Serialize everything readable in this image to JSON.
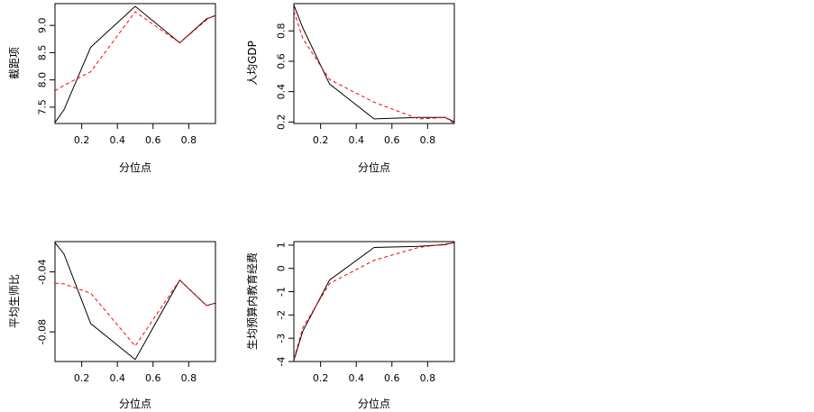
{
  "chart_data": [
    {
      "type": "line",
      "xlabel": "分位点",
      "ylabel": "截距项",
      "xlim": [
        0.05,
        0.95
      ],
      "ylim": [
        7.2,
        9.4
      ],
      "xticks": [
        0.2,
        0.4,
        0.6,
        0.8
      ],
      "xtick_labels": [
        "0.2",
        "0.4",
        "0.6",
        "0.8"
      ],
      "yticks": [
        7.5,
        8.0,
        8.5,
        9.0
      ],
      "ytick_labels": [
        "7.5",
        "8.0",
        "8.5",
        "9.0"
      ],
      "grid": false,
      "x": [
        0.05,
        0.1,
        0.25,
        0.5,
        0.75,
        0.9,
        0.95
      ],
      "series": [
        {
          "values": [
            7.22,
            7.45,
            8.6,
            9.35,
            8.68,
            9.12,
            9.18
          ],
          "color": "#000000",
          "dash": "solid"
        },
        {
          "values": [
            7.8,
            7.9,
            8.15,
            9.25,
            8.68,
            9.1,
            9.2
          ],
          "color": "#ff0000",
          "dash": "dashed"
        }
      ]
    },
    {
      "type": "line",
      "xlabel": "分位点",
      "ylabel": "人均GDP",
      "xlim": [
        0.05,
        0.95
      ],
      "ylim": [
        0.19,
        0.98
      ],
      "xticks": [
        0.2,
        0.4,
        0.6,
        0.8
      ],
      "xtick_labels": [
        "0.2",
        "0.4",
        "0.6",
        "0.8"
      ],
      "yticks": [
        0.2,
        0.4,
        0.6,
        0.8
      ],
      "ytick_labels": [
        "0.2",
        "0.4",
        "0.6",
        "0.8"
      ],
      "grid": false,
      "x": [
        0.05,
        0.1,
        0.25,
        0.5,
        0.75,
        0.9,
        0.95
      ],
      "series": [
        {
          "values": [
            0.97,
            0.82,
            0.45,
            0.22,
            0.23,
            0.23,
            0.2
          ],
          "color": "#000000",
          "dash": "solid"
        },
        {
          "values": [
            0.93,
            0.75,
            0.48,
            0.33,
            0.22,
            0.23,
            0.19
          ],
          "color": "#ff0000",
          "dash": "dashed"
        }
      ]
    },
    {
      "type": "line",
      "xlabel": "分位点",
      "ylabel": "平均生师比",
      "xlim": [
        0.05,
        0.95
      ],
      "ylim": [
        -0.0998,
        -0.0198
      ],
      "xticks": [
        0.2,
        0.4,
        0.6,
        0.8
      ],
      "xtick_labels": [
        "0.2",
        "0.4",
        "0.6",
        "0.8"
      ],
      "yticks": [
        -0.04,
        -0.08
      ],
      "ytick_labels": [
        "-0.04",
        "-0.08"
      ],
      "grid": false,
      "x": [
        0.05,
        0.1,
        0.25,
        0.5,
        0.75,
        0.9,
        0.95
      ],
      "series": [
        {
          "values": [
            -0.0205,
            -0.028,
            -0.0745,
            -0.0985,
            -0.0455,
            -0.0625,
            -0.0608
          ],
          "color": "#000000",
          "dash": "solid"
        },
        {
          "values": [
            -0.0475,
            -0.048,
            -0.0542,
            -0.0895,
            -0.0455,
            -0.0625,
            -0.0608
          ],
          "color": "#ff0000",
          "dash": "dashed"
        }
      ]
    },
    {
      "type": "line",
      "xlabel": "分位点",
      "ylabel": "生均预算内教育经费",
      "xlim": [
        0.05,
        0.95
      ],
      "ylim": [
        -4.0,
        1.15
      ],
      "xticks": [
        0.2,
        0.4,
        0.6,
        0.8
      ],
      "xtick_labels": [
        "0.2",
        "0.4",
        "0.6",
        "0.8"
      ],
      "yticks": [
        -4,
        -3,
        -2,
        -1,
        0,
        1
      ],
      "ytick_labels": [
        "-4",
        "-3",
        "-2",
        "-1",
        "0",
        "1"
      ],
      "grid": false,
      "x": [
        0.05,
        0.1,
        0.25,
        0.5,
        0.75,
        0.9,
        0.95
      ],
      "series": [
        {
          "values": [
            -3.95,
            -2.7,
            -0.5,
            0.9,
            0.95,
            1.02,
            1.12
          ],
          "color": "#000000",
          "dash": "solid"
        },
        {
          "values": [
            -3.9,
            -2.55,
            -0.65,
            0.35,
            0.9,
            1.05,
            1.1
          ],
          "color": "#ff0000",
          "dash": "dashed"
        }
      ]
    }
  ]
}
